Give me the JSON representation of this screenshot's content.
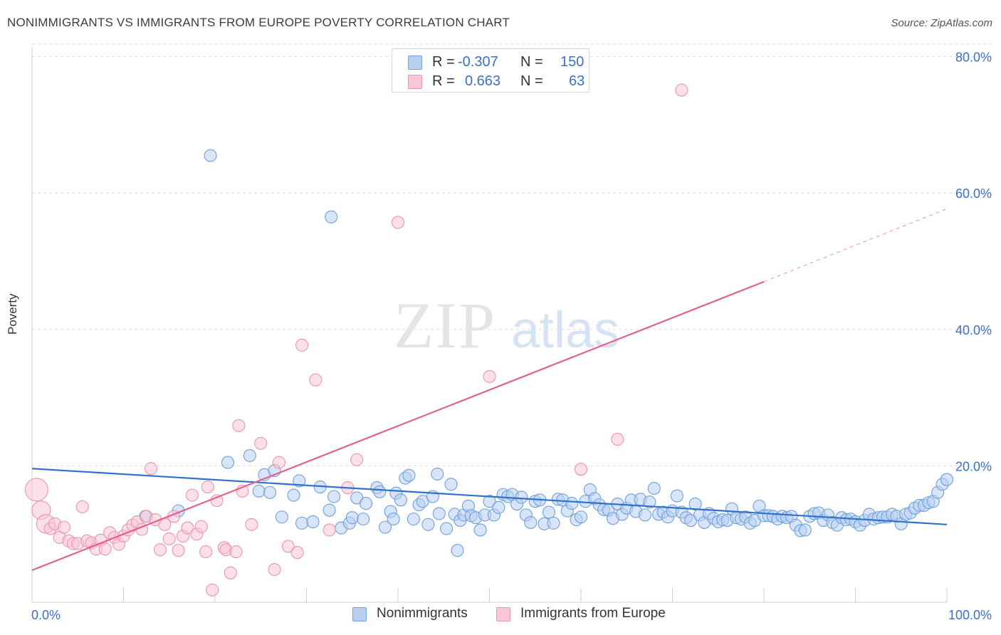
{
  "title": "NONIMMIGRANTS VS IMMIGRANTS FROM EUROPE POVERTY CORRELATION CHART",
  "source": "Source: ZipAtlas.com",
  "watermark": {
    "zip": "ZIP",
    "atlas": "atlas"
  },
  "colors": {
    "blue_fill": "#b8d0f2",
    "blue_stroke": "#6f9fdc",
    "blue_line": "#2f72cc",
    "pink_fill": "#f8c6d6",
    "pink_stroke": "#ec93b0",
    "pink_line": "#e2608e",
    "value_text": "#3a70c8",
    "grid": "#dddddd"
  },
  "legend_stats": [
    {
      "series": "Nonimmigrants",
      "r_label": "R =",
      "r_value": "-0.307",
      "n_label": "N =",
      "n_value": "150",
      "swatch": "blue"
    },
    {
      "series": "Immigrants from Europe",
      "r_label": "R =",
      "r_value": "0.663",
      "n_label": "N =",
      "n_value": "63",
      "swatch": "pink"
    }
  ],
  "chart_data": {
    "type": "scatter",
    "title": "NONIMMIGRANTS VS IMMIGRANTS FROM EUROPE POVERTY CORRELATION CHART",
    "xlabel": "",
    "ylabel": "Poverty",
    "xlim": [
      0,
      100
    ],
    "ylim": [
      0,
      80
    ],
    "x_tick_labels": [
      "0.0%",
      "100.0%"
    ],
    "y_ticks": [
      20,
      40,
      60,
      80
    ],
    "y_tick_labels": [
      "20.0%",
      "40.0%",
      "60.0%",
      "80.0%"
    ],
    "grid": true,
    "legend_position": "bottom",
    "series": [
      {
        "name": "Nonimmigrants",
        "color": "#b8d0f2",
        "trend": {
          "x": [
            0,
            100
          ],
          "y": [
            19.6,
            11.4
          ]
        },
        "points": [
          [
            19.5,
            65.5
          ],
          [
            32.7,
            56.5
          ],
          [
            12.4,
            12.6
          ],
          [
            21.4,
            20.5
          ],
          [
            23.8,
            21.5
          ],
          [
            24.8,
            16.3
          ],
          [
            25.4,
            18.7
          ],
          [
            26.0,
            16.1
          ],
          [
            26.5,
            19.3
          ],
          [
            27.3,
            12.5
          ],
          [
            28.6,
            15.7
          ],
          [
            29.2,
            17.8
          ],
          [
            29.5,
            11.6
          ],
          [
            30.7,
            11.8
          ],
          [
            31.5,
            16.9
          ],
          [
            32.5,
            13.5
          ],
          [
            33.0,
            15.5
          ],
          [
            33.8,
            10.9
          ],
          [
            34.7,
            11.6
          ],
          [
            35.0,
            12.4
          ],
          [
            35.5,
            15.3
          ],
          [
            36.2,
            12.2
          ],
          [
            36.5,
            14.5
          ],
          [
            37.7,
            16.8
          ],
          [
            38.0,
            16.2
          ],
          [
            38.6,
            11.0
          ],
          [
            39.2,
            13.3
          ],
          [
            39.5,
            12.2
          ],
          [
            39.8,
            16.0
          ],
          [
            40.3,
            15.0
          ],
          [
            40.8,
            18.2
          ],
          [
            41.2,
            18.6
          ],
          [
            41.7,
            12.2
          ],
          [
            42.3,
            14.3
          ],
          [
            42.7,
            14.8
          ],
          [
            43.3,
            11.4
          ],
          [
            43.8,
            15.5
          ],
          [
            44.3,
            18.8
          ],
          [
            44.5,
            13.0
          ],
          [
            45.3,
            10.8
          ],
          [
            45.8,
            17.3
          ],
          [
            46.2,
            12.9
          ],
          [
            46.8,
            12.0
          ],
          [
            47.2,
            12.8
          ],
          [
            47.7,
            14.1
          ],
          [
            48.0,
            12.7
          ],
          [
            48.5,
            12.4
          ],
          [
            49.0,
            10.6
          ],
          [
            49.5,
            12.8
          ],
          [
            50.0,
            14.8
          ],
          [
            50.5,
            12.8
          ],
          [
            51.0,
            13.9
          ],
          [
            51.5,
            15.8
          ],
          [
            52.0,
            15.5
          ],
          [
            52.5,
            15.8
          ],
          [
            53.0,
            14.4
          ],
          [
            53.5,
            15.4
          ],
          [
            54.0,
            12.8
          ],
          [
            54.5,
            11.7
          ],
          [
            55.0,
            14.8
          ],
          [
            55.5,
            15.0
          ],
          [
            56.0,
            11.5
          ],
          [
            56.5,
            13.2
          ],
          [
            57.0,
            11.6
          ],
          [
            57.5,
            15.1
          ],
          [
            58.0,
            15.0
          ],
          [
            58.5,
            13.4
          ],
          [
            59.0,
            14.5
          ],
          [
            59.5,
            12.1
          ],
          [
            60.0,
            12.5
          ],
          [
            60.5,
            14.8
          ],
          [
            61.0,
            16.5
          ],
          [
            61.5,
            15.2
          ],
          [
            62.0,
            14.3
          ],
          [
            62.5,
            13.6
          ],
          [
            63.0,
            13.5
          ],
          [
            63.5,
            12.3
          ],
          [
            64.0,
            14.4
          ],
          [
            64.5,
            12.9
          ],
          [
            65.0,
            13.8
          ],
          [
            65.5,
            15.0
          ],
          [
            66.0,
            13.3
          ],
          [
            66.5,
            15.1
          ],
          [
            67.0,
            12.8
          ],
          [
            67.5,
            14.7
          ],
          [
            68.0,
            16.7
          ],
          [
            68.5,
            12.9
          ],
          [
            69.0,
            13.2
          ],
          [
            69.5,
            12.5
          ],
          [
            70.0,
            13.4
          ],
          [
            70.5,
            15.6
          ],
          [
            71.0,
            13.2
          ],
          [
            71.5,
            12.4
          ],
          [
            72.0,
            12.0
          ],
          [
            72.5,
            14.4
          ],
          [
            73.0,
            12.8
          ],
          [
            73.5,
            11.7
          ],
          [
            74.0,
            13.0
          ],
          [
            74.5,
            12.3
          ],
          [
            75.0,
            11.8
          ],
          [
            75.5,
            12.1
          ],
          [
            76.0,
            12.0
          ],
          [
            76.5,
            13.7
          ],
          [
            77.0,
            12.4
          ],
          [
            77.5,
            12.2
          ],
          [
            78.0,
            12.5
          ],
          [
            78.5,
            11.6
          ],
          [
            79.0,
            12.0
          ],
          [
            79.5,
            14.1
          ],
          [
            80.0,
            12.7
          ],
          [
            80.5,
            12.7
          ],
          [
            81.0,
            12.6
          ],
          [
            81.5,
            12.2
          ],
          [
            82.0,
            12.6
          ],
          [
            82.5,
            12.4
          ],
          [
            83.0,
            12.6
          ],
          [
            83.5,
            11.3
          ],
          [
            84.0,
            10.5
          ],
          [
            84.5,
            10.6
          ],
          [
            85.0,
            12.6
          ],
          [
            85.5,
            13.0
          ],
          [
            86.0,
            13.1
          ],
          [
            86.5,
            12.0
          ],
          [
            87.0,
            12.8
          ],
          [
            87.5,
            11.7
          ],
          [
            88.0,
            11.3
          ],
          [
            88.5,
            12.4
          ],
          [
            89.0,
            12.1
          ],
          [
            89.5,
            12.2
          ],
          [
            90.0,
            11.8
          ],
          [
            90.5,
            11.3
          ],
          [
            91.0,
            12.0
          ],
          [
            91.5,
            12.9
          ],
          [
            92.0,
            12.2
          ],
          [
            92.5,
            12.4
          ],
          [
            93.0,
            12.5
          ],
          [
            93.5,
            12.5
          ],
          [
            94.0,
            12.9
          ],
          [
            94.5,
            12.6
          ],
          [
            95.0,
            11.5
          ],
          [
            95.5,
            12.9
          ],
          [
            96.0,
            13.1
          ],
          [
            96.5,
            13.8
          ],
          [
            97.0,
            14.2
          ],
          [
            97.5,
            14.2
          ],
          [
            98.0,
            14.6
          ],
          [
            98.5,
            14.8
          ],
          [
            99.0,
            16.1
          ],
          [
            99.5,
            17.3
          ],
          [
            100.0,
            18.0
          ],
          [
            46.5,
            7.6
          ],
          [
            16.0,
            13.4
          ]
        ]
      },
      {
        "name": "Immigrants from Europe",
        "color": "#f8c6d6",
        "trend": {
          "x": [
            0,
            80
          ],
          "y": [
            4.7,
            47.0
          ],
          "dashed_x": [
            80,
            100
          ],
          "dashed_y": [
            47.0,
            57.7
          ]
        },
        "points": [
          [
            0.5,
            16.5
          ],
          [
            1.0,
            13.5
          ],
          [
            1.5,
            11.5
          ],
          [
            2.0,
            10.8
          ],
          [
            2.5,
            11.5
          ],
          [
            3.0,
            9.5
          ],
          [
            3.5,
            11.0
          ],
          [
            4.0,
            9.0
          ],
          [
            4.5,
            8.6
          ],
          [
            5.0,
            8.6
          ],
          [
            5.5,
            14.0
          ],
          [
            6.0,
            9.0
          ],
          [
            6.5,
            8.7
          ],
          [
            7.0,
            7.8
          ],
          [
            7.5,
            9.1
          ],
          [
            8.0,
            7.8
          ],
          [
            8.5,
            10.2
          ],
          [
            9.0,
            9.5
          ],
          [
            9.5,
            8.5
          ],
          [
            10.0,
            9.7
          ],
          [
            10.5,
            10.6
          ],
          [
            11.0,
            11.3
          ],
          [
            11.5,
            11.8
          ],
          [
            12.0,
            10.7
          ],
          [
            12.5,
            12.6
          ],
          [
            13.0,
            19.6
          ],
          [
            13.5,
            12.1
          ],
          [
            14.0,
            7.7
          ],
          [
            14.5,
            11.4
          ],
          [
            15.0,
            9.3
          ],
          [
            15.5,
            12.6
          ],
          [
            16.0,
            7.6
          ],
          [
            16.5,
            9.7
          ],
          [
            17.0,
            10.9
          ],
          [
            17.5,
            15.7
          ],
          [
            18.0,
            10.0
          ],
          [
            18.5,
            11.1
          ],
          [
            19.0,
            7.4
          ],
          [
            19.2,
            16.9
          ],
          [
            19.7,
            1.8
          ],
          [
            20.2,
            14.9
          ],
          [
            21.0,
            8.0
          ],
          [
            21.2,
            7.7
          ],
          [
            21.7,
            4.3
          ],
          [
            22.3,
            7.4
          ],
          [
            22.6,
            25.9
          ],
          [
            23.0,
            16.3
          ],
          [
            24.0,
            11.4
          ],
          [
            25.0,
            23.3
          ],
          [
            26.5,
            4.8
          ],
          [
            27.0,
            20.5
          ],
          [
            28.0,
            8.2
          ],
          [
            29.0,
            7.3
          ],
          [
            29.5,
            37.7
          ],
          [
            31.0,
            32.6
          ],
          [
            32.5,
            10.6
          ],
          [
            34.5,
            16.8
          ],
          [
            35.5,
            20.9
          ],
          [
            40.0,
            55.7
          ],
          [
            50.0,
            33.1
          ],
          [
            60.0,
            19.5
          ],
          [
            64.0,
            23.9
          ],
          [
            71.0,
            75.1
          ]
        ]
      }
    ]
  }
}
